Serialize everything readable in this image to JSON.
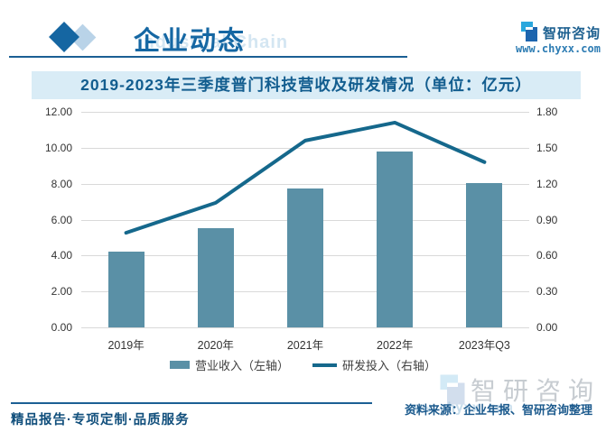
{
  "header": {
    "section_title": "企业动态",
    "watermark": "Industrial Chain",
    "brand_name": "智研咨询",
    "brand_url": "www.chyxx.com"
  },
  "chart_data": {
    "type": "bar",
    "subtype": "combo-bar-line-dual-axis",
    "title": "2019-2023年三季度普门科技营收及研发情况（单位：亿元）",
    "categories": [
      "2019年",
      "2020年",
      "2021年",
      "2022年",
      "2023年Q3"
    ],
    "series": [
      {
        "name": "营业收入（左轴）",
        "type": "bar",
        "axis": "left",
        "values": [
          4.2,
          5.5,
          7.75,
          9.8,
          8.05
        ]
      },
      {
        "name": "研发投入（右轴）",
        "type": "line",
        "axis": "right",
        "values": [
          0.79,
          1.04,
          1.56,
          1.71,
          1.38
        ]
      }
    ],
    "left_axis": {
      "min": 0,
      "max": 12,
      "step": 2
    },
    "right_axis": {
      "min": 0,
      "max": 1.8,
      "step": 0.3
    },
    "grid": true,
    "legend_position": "bottom",
    "xlabel": "",
    "ylabel": ""
  },
  "colors": {
    "bar": "#5a90a6",
    "line": "#15688c",
    "accent_blue": "#1566a2",
    "title_bg": "#d9ecf6",
    "title_text": "#125d8f"
  },
  "footer": {
    "tagline": "精品报告·专项定制·品质服务",
    "source": "资料来源：企业年报、智研咨询整理",
    "watermark_name": "智研咨询",
    "watermark_url": "www.chyxx.com"
  }
}
